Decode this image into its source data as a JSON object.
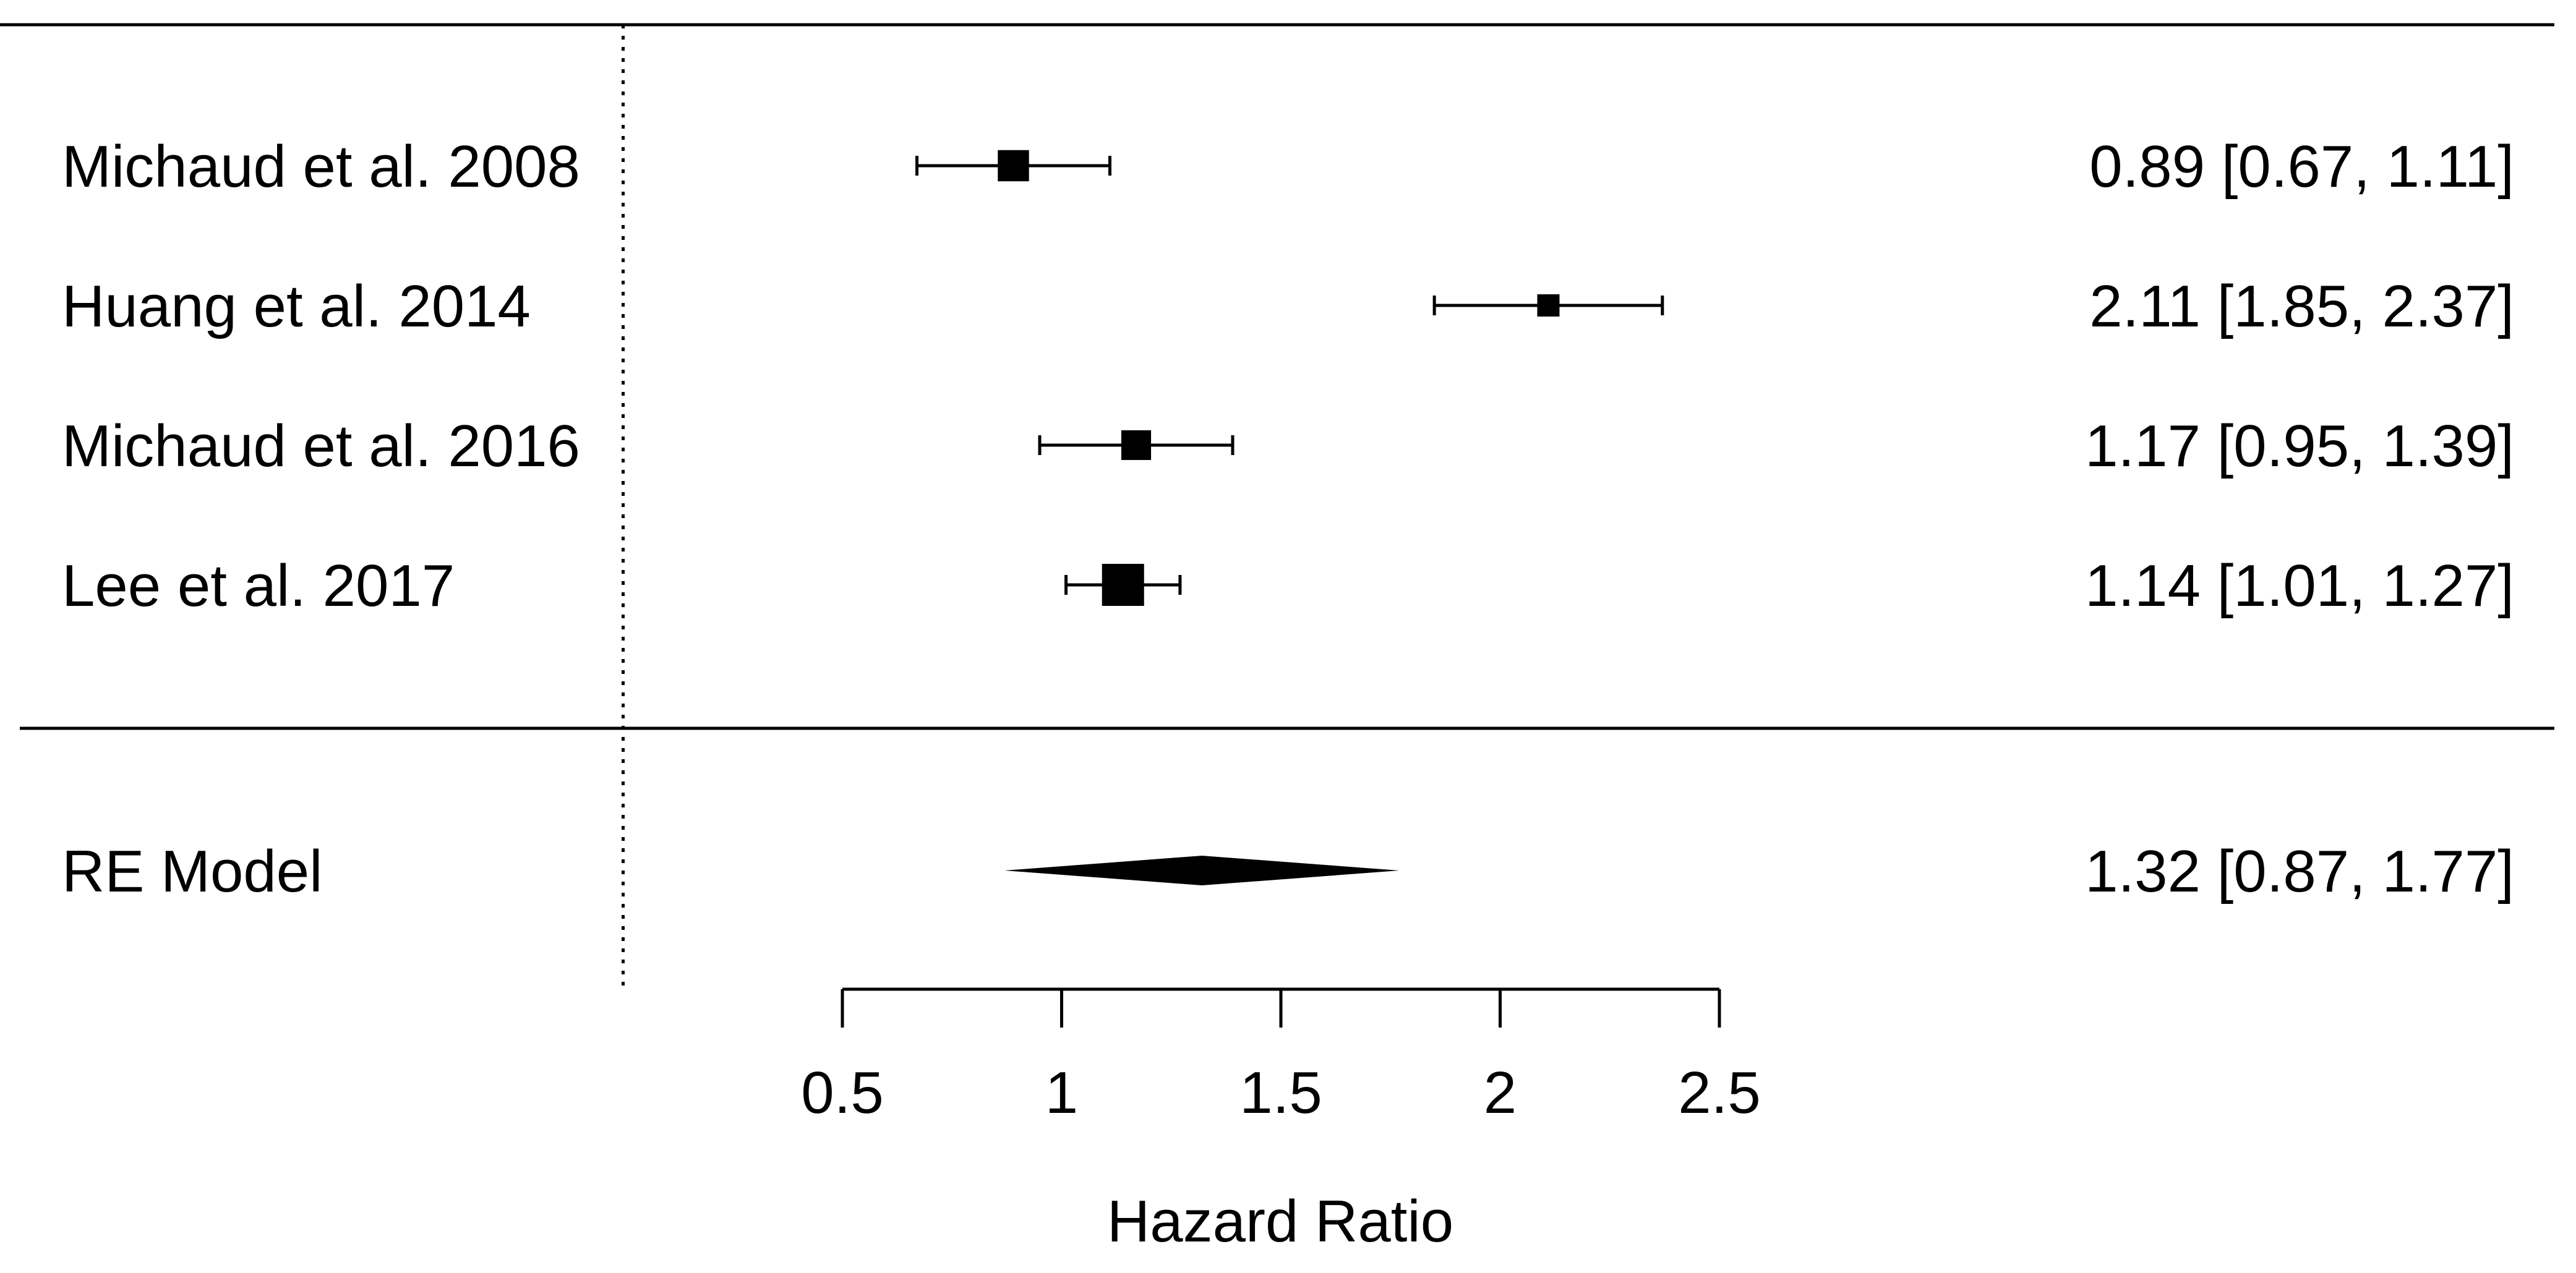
{
  "chart_data": {
    "type": "forest",
    "title": "",
    "xlabel": "Hazard Ratio",
    "ylabel": "",
    "xlim": [
      0.5,
      2.5
    ],
    "xticks": [
      0.5,
      1,
      1.5,
      2,
      2.5
    ],
    "xtick_labels": [
      "0.5",
      "1",
      "1.5",
      "2",
      "2.5"
    ],
    "reference_line": {
      "x": 0,
      "style": "dotted"
    },
    "grid": false,
    "legend": "none",
    "studies": [
      {
        "label": "Michaud et al. 2008",
        "estimate": 0.89,
        "ci_lower": 0.67,
        "ci_upper": 1.11,
        "estimate_text": "0.89 [0.67, 1.11]",
        "weight": 0.55
      },
      {
        "label": "Huang et al. 2014",
        "estimate": 2.11,
        "ci_lower": 1.85,
        "ci_upper": 2.37,
        "estimate_text": "2.11 [1.85, 2.37]",
        "weight": 0.28
      },
      {
        "label": "Michaud et al. 2016",
        "estimate": 1.17,
        "ci_lower": 0.95,
        "ci_upper": 1.39,
        "estimate_text": "1.17 [0.95, 1.39]",
        "weight": 0.5
      },
      {
        "label": "Lee et al. 2017",
        "estimate": 1.14,
        "ci_lower": 1.01,
        "ci_upper": 1.27,
        "estimate_text": "1.14 [1.01, 1.27]",
        "weight": 1.0
      }
    ],
    "summary": {
      "label": "RE Model",
      "estimate": 1.32,
      "ci_lower": 0.87,
      "ci_upper": 1.77,
      "estimate_text": "1.32 [0.87, 1.77]"
    },
    "colors": {
      "ink": "#000000",
      "background": "#ffffff"
    }
  }
}
